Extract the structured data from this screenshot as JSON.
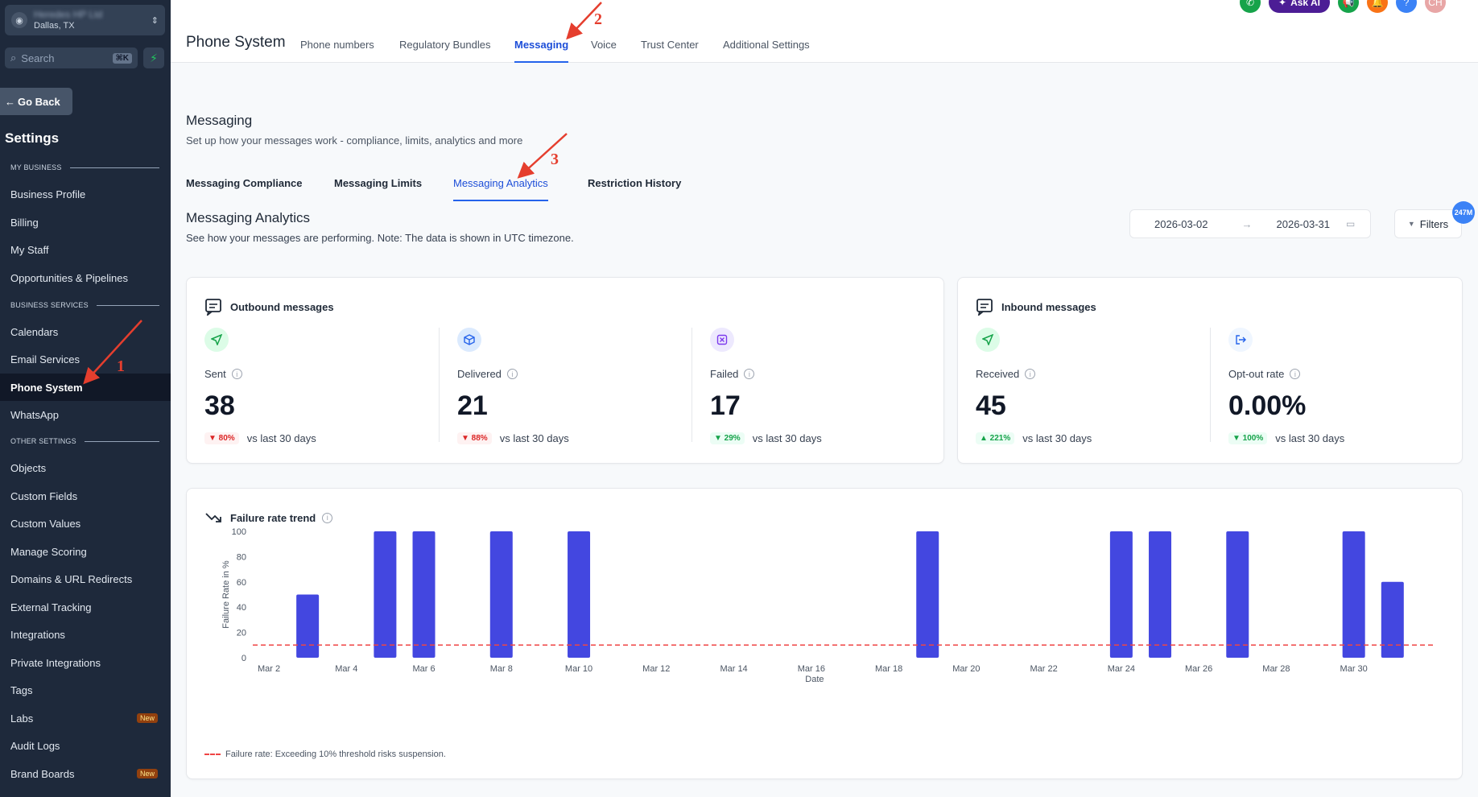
{
  "sidebar": {
    "location_name": "Heredes HP Ltd",
    "location_city": "Dallas, TX",
    "search_placeholder": "Search",
    "search_shortcut": "⌘K",
    "go_back": "Go Back",
    "title": "Settings",
    "sections": {
      "my_business": "MY BUSINESS",
      "business_services": "BUSINESS SERVICES",
      "other_settings": "OTHER SETTINGS"
    },
    "items": {
      "business_profile": "Business Profile",
      "billing": "Billing",
      "my_staff": "My Staff",
      "opportunities": "Opportunities & Pipelines",
      "calendars": "Calendars",
      "email_services": "Email Services",
      "phone_system": "Phone System",
      "whatsapp": "WhatsApp",
      "objects": "Objects",
      "custom_fields": "Custom Fields",
      "custom_values": "Custom Values",
      "manage_scoring": "Manage Scoring",
      "domains": "Domains & URL Redirects",
      "external_tracking": "External Tracking",
      "integrations": "Integrations",
      "private_integrations": "Private Integrations",
      "tags": "Tags",
      "labs": "Labs",
      "audit_logs": "Audit Logs",
      "brand_boards": "Brand Boards"
    },
    "new_badge": "New"
  },
  "header": {
    "ask_ai": "Ask AI",
    "help": "?",
    "avatar": "CH",
    "page_title": "Phone System",
    "tabs": {
      "phone_numbers": "Phone numbers",
      "regulatory": "Regulatory Bundles",
      "messaging": "Messaging",
      "voice": "Voice",
      "trust_center": "Trust Center",
      "additional": "Additional Settings"
    }
  },
  "messaging": {
    "title": "Messaging",
    "subtitle": "Set up how your messages work - compliance, limits, analytics and more",
    "tabs": {
      "compliance": "Messaging Compliance",
      "limits": "Messaging Limits",
      "analytics": "Messaging Analytics",
      "restriction": "Restriction History"
    }
  },
  "analytics": {
    "title": "Messaging Analytics",
    "subtitle": "See how your messages are performing. Note: The data is shown in UTC timezone.",
    "date_from": "2026-03-02",
    "date_to": "2026-03-31",
    "filters": "Filters",
    "filters_badge": "247M",
    "outbound": {
      "title": "Outbound messages",
      "sent_label": "Sent",
      "sent_value": "38",
      "sent_change": "▼ 80%",
      "delivered_label": "Delivered",
      "delivered_value": "21",
      "delivered_change": "▼ 88%",
      "failed_label": "Failed",
      "failed_value": "17",
      "failed_change": "▼ 29%"
    },
    "inbound": {
      "title": "Inbound messages",
      "received_label": "Received",
      "received_value": "45",
      "received_change": "▲ 221%",
      "optout_label": "Opt-out rate",
      "optout_value": "0.00%",
      "optout_change": "▼ 100%"
    },
    "vs_text": "vs last 30 days",
    "trend_title": "Failure rate trend",
    "legend": "Failure rate: Exceeding 10% threshold risks suspension."
  },
  "colors": {
    "accent": "#2563eb",
    "bar": "#4347e0",
    "threshold": "#ef4444"
  },
  "annotations": [
    "1",
    "2",
    "3"
  ],
  "chart_data": {
    "type": "bar",
    "title": "Failure rate trend",
    "xlabel": "Date",
    "ylabel": "Failure Rate in %",
    "ylim": [
      0,
      100
    ],
    "yticks": [
      0,
      20,
      40,
      60,
      80,
      100
    ],
    "threshold": 10,
    "categories": [
      "Mar 2",
      "Mar 3",
      "Mar 4",
      "Mar 5",
      "Mar 6",
      "Mar 7",
      "Mar 8",
      "Mar 9",
      "Mar 10",
      "Mar 11",
      "Mar 12",
      "Mar 13",
      "Mar 14",
      "Mar 15",
      "Mar 16",
      "Mar 17",
      "Mar 18",
      "Mar 19",
      "Mar 20",
      "Mar 21",
      "Mar 22",
      "Mar 23",
      "Mar 24",
      "Mar 25",
      "Mar 26",
      "Mar 27",
      "Mar 28",
      "Mar 29",
      "Mar 30",
      "Mar 31"
    ],
    "tick_labels": [
      "Mar 2",
      "Mar 4",
      "Mar 6",
      "Mar 8",
      "Mar 10",
      "Mar 12",
      "Mar 14",
      "Mar 16",
      "Mar 18",
      "Mar 20",
      "Mar 22",
      "Mar 24",
      "Mar 26",
      "Mar 28",
      "Mar 30"
    ],
    "values": [
      0,
      50,
      0,
      100,
      100,
      0,
      100,
      0,
      100,
      0,
      0,
      0,
      0,
      0,
      0,
      0,
      0,
      100,
      0,
      0,
      0,
      0,
      100,
      100,
      0,
      100,
      0,
      0,
      100,
      60
    ]
  }
}
